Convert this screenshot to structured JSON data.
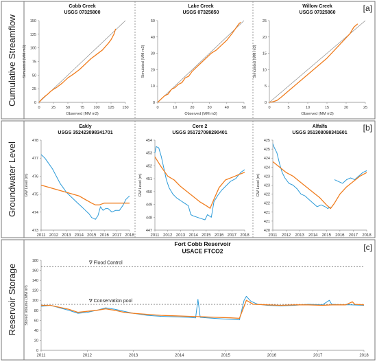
{
  "sections": [
    {
      "tag": "[a]",
      "ylabel": "Cumulative Streamflow"
    },
    {
      "tag": "[b]",
      "ylabel": "Groundwater Level"
    },
    {
      "tag": "[c]",
      "ylabel": "Reservoir Storage"
    }
  ],
  "colors": {
    "simulated": "#f07d1e",
    "observed": "#2b9ad8",
    "one_to_one": "#8c8c8c",
    "frame": "#777777"
  },
  "chart_data": [
    {
      "type": "line",
      "panel": "a1",
      "title": "Cobb Creek",
      "subtitle": "USGS 07325800",
      "xlabel": "Observed (MM m3)",
      "ylabel": "Simulated (MM m3)",
      "xlim": [
        0,
        150
      ],
      "ylim": [
        0,
        150
      ],
      "xticks": [
        0,
        25,
        50,
        75,
        100,
        125,
        150
      ],
      "yticks": [
        0,
        25,
        50,
        75,
        100,
        125,
        150
      ],
      "one_to_one": true,
      "series": [
        {
          "x": [
            0,
            5,
            10,
            15,
            20,
            25,
            30,
            40,
            50,
            60,
            70,
            80,
            90,
            100,
            110,
            115,
            120,
            125,
            130,
            133
          ],
          "y": [
            0,
            6,
            11,
            15,
            20,
            24,
            27,
            35,
            45,
            52,
            60,
            70,
            80,
            88,
            96,
            102,
            108,
            115,
            125,
            135
          ]
        }
      ]
    },
    {
      "type": "line",
      "panel": "a2",
      "title": "Lake Creek",
      "subtitle": "USGS 07325850",
      "xlabel": "Observed (MM m3)",
      "ylabel": "Simulated (MM m3)",
      "xlim": [
        0,
        50
      ],
      "ylim": [
        0,
        50
      ],
      "xticks": [
        0,
        10,
        20,
        30,
        40,
        50
      ],
      "yticks": [
        0,
        10,
        20,
        30,
        40,
        50
      ],
      "one_to_one": true,
      "series": [
        {
          "x": [
            0,
            2,
            4,
            6,
            8,
            10,
            12,
            14,
            16,
            18,
            20,
            22,
            25,
            28,
            31,
            34,
            37,
            40,
            43,
            45,
            47,
            48
          ],
          "y": [
            0,
            2,
            4,
            5,
            8,
            9,
            11,
            12,
            15,
            16,
            19,
            21,
            24,
            27,
            30,
            32,
            35,
            38,
            42,
            45,
            48,
            49
          ]
        }
      ]
    },
    {
      "type": "line",
      "panel": "a3",
      "title": "Willow Creek",
      "subtitle": "USGS 07325860",
      "xlabel": "Observed (MM m3)",
      "ylabel": "Simulated (MM m3)",
      "xlim": [
        0,
        25
      ],
      "ylim": [
        0,
        25
      ],
      "xticks": [
        0,
        5,
        10,
        15,
        20,
        25
      ],
      "yticks": [
        0,
        5,
        10,
        15,
        20,
        25
      ],
      "one_to_one": true,
      "series": [
        {
          "x": [
            0,
            1,
            2,
            3,
            5,
            7,
            9,
            11,
            13,
            15,
            17,
            19,
            21,
            22,
            23
          ],
          "y": [
            0,
            0.2,
            0.6,
            1.5,
            3.5,
            5.5,
            7.5,
            9.5,
            11.5,
            13.5,
            16,
            18.5,
            21,
            23,
            24
          ]
        }
      ]
    },
    {
      "type": "line",
      "panel": "b1",
      "title": "Eakly",
      "subtitle": "USGS 352423098341701",
      "xlabel": "",
      "ylabel": "GW Level (m)",
      "xlim": [
        2011,
        2018
      ],
      "ylim": [
        473,
        478
      ],
      "xticks": [
        2011,
        2012,
        2013,
        2014,
        2015,
        2016,
        2017,
        2018
      ],
      "yticks": [
        473,
        474,
        475,
        476,
        477,
        478
      ],
      "series": [
        {
          "role": "observed",
          "x": [
            2011.0,
            2011.3,
            2011.6,
            2011.9,
            2012.2,
            2012.5,
            2012.8,
            2013.0,
            2013.3,
            2013.6,
            2013.9,
            2014.2,
            2014.5,
            2014.8,
            2015.0,
            2015.3,
            2015.5,
            2015.7,
            2015.9,
            2016.1,
            2016.3,
            2016.6,
            2016.9,
            2017.2,
            2017.5,
            2017.7,
            2018.0
          ],
          "y": [
            477.2,
            477.0,
            476.7,
            476.4,
            476.0,
            475.6,
            475.3,
            475.1,
            474.9,
            474.7,
            474.5,
            474.3,
            474.1,
            473.9,
            473.7,
            473.6,
            473.8,
            474.3,
            474.1,
            474.2,
            474.2,
            474.0,
            474.1,
            474.1,
            474.4,
            474.7,
            474.9
          ]
        },
        {
          "role": "simulated",
          "x": [
            2011.0,
            2011.5,
            2012.0,
            2012.5,
            2013.0,
            2013.5,
            2014.0,
            2014.5,
            2015.0,
            2015.3,
            2015.6,
            2016.0,
            2016.5,
            2017.0,
            2017.5,
            2018.0
          ],
          "y": [
            475.5,
            475.4,
            475.3,
            475.2,
            475.1,
            475.0,
            474.9,
            474.7,
            474.5,
            474.4,
            474.4,
            474.5,
            474.5,
            474.5,
            474.5,
            474.5
          ]
        }
      ]
    },
    {
      "type": "line",
      "panel": "b2",
      "title": "Core 2",
      "subtitle": "USGS 351727098290401",
      "xlabel": "",
      "ylabel": "GW Level (m)",
      "xlim": [
        2011,
        2018
      ],
      "ylim": [
        447,
        454
      ],
      "xticks": [
        2011,
        2012,
        2013,
        2014,
        2015,
        2016,
        2017,
        2018
      ],
      "yticks": [
        447,
        448,
        449,
        450,
        451,
        452,
        453,
        454
      ],
      "series": [
        {
          "role": "observed",
          "x": [
            2011.0,
            2011.1,
            2011.3,
            2011.5,
            2011.7,
            2011.9,
            2012.1,
            2012.4,
            2012.7,
            2013.0,
            2013.3,
            2013.6,
            2013.8,
            2014.0,
            2014.3,
            2014.6,
            2014.9,
            2015.1,
            2015.4,
            2015.6,
            2015.9,
            2016.2,
            2016.5,
            2016.9,
            2017.3,
            2017.7,
            2018.0
          ],
          "y": [
            453.0,
            453.5,
            453.4,
            452.7,
            451.8,
            450.9,
            450.3,
            449.8,
            449.5,
            449.3,
            449.1,
            448.9,
            448.2,
            448.1,
            448.0,
            447.9,
            447.8,
            448.2,
            448.0,
            449.2,
            449.7,
            450.1,
            450.4,
            450.8,
            451.0,
            451.5,
            451.7
          ]
        },
        {
          "role": "simulated",
          "x": [
            2011.0,
            2011.5,
            2012.0,
            2012.5,
            2013.0,
            2013.5,
            2014.0,
            2014.5,
            2015.0,
            2015.3,
            2015.6,
            2016.0,
            2016.5,
            2017.0,
            2017.5,
            2018.0
          ],
          "y": [
            452.7,
            451.9,
            451.2,
            450.9,
            450.4,
            450.0,
            449.6,
            449.2,
            448.9,
            448.7,
            449.4,
            450.3,
            450.9,
            451.1,
            451.3,
            451.5
          ]
        }
      ]
    },
    {
      "type": "line",
      "panel": "b3",
      "title": "Alfalfa",
      "subtitle": "USGS 351308098341601",
      "xlabel": "",
      "ylabel": "GW Level (m)",
      "xlim": [
        2011,
        2018
      ],
      "ylim": [
        420,
        425
      ],
      "xticks": [
        2011,
        2012,
        2013,
        2014,
        2015,
        2016,
        2017,
        2018
      ],
      "yticks": [
        420,
        420.5,
        421,
        421.5,
        422,
        422.5,
        423,
        423.5,
        424,
        424.5,
        425
      ],
      "ytick_labels": [
        "420",
        "421",
        "421",
        "422",
        "422",
        "423",
        "423",
        "424",
        "424",
        "425",
        "425"
      ],
      "series": [
        {
          "role": "observed",
          "segment": 1,
          "x": [
            2011.0,
            2011.1,
            2011.3,
            2011.5,
            2011.7,
            2011.9,
            2012.2,
            2012.5,
            2012.8,
            2013.1,
            2013.4,
            2013.7,
            2014.0,
            2014.3,
            2014.6,
            2014.9,
            2015.1,
            2015.3
          ],
          "y": [
            424.8,
            424.6,
            424.3,
            423.7,
            423.2,
            422.9,
            422.6,
            422.5,
            422.3,
            422.0,
            421.9,
            421.7,
            421.5,
            421.3,
            421.4,
            421.3,
            421.2,
            421.3
          ]
        },
        {
          "role": "observed",
          "segment": 2,
          "x": [
            2015.6,
            2015.9,
            2016.2,
            2016.5,
            2016.8,
            2017.1,
            2017.4,
            2017.7,
            2018.0
          ],
          "y": [
            422.8,
            422.7,
            422.6,
            422.8,
            422.9,
            422.8,
            423.0,
            423.2,
            423.3
          ]
        },
        {
          "role": "simulated",
          "x": [
            2011.0,
            2011.5,
            2012.0,
            2012.5,
            2013.0,
            2013.5,
            2014.0,
            2014.5,
            2015.0,
            2015.3,
            2015.6,
            2016.0,
            2016.5,
            2017.0,
            2017.5,
            2018.0
          ],
          "y": [
            423.8,
            423.5,
            423.2,
            423.0,
            422.7,
            422.4,
            422.1,
            421.8,
            421.4,
            421.2,
            421.5,
            422.0,
            422.4,
            422.7,
            423.0,
            423.2
          ]
        }
      ]
    },
    {
      "type": "line",
      "panel": "c",
      "title": "Fort Cobb Reservoir",
      "subtitle": "USACE FTCO2",
      "xlabel": "",
      "ylabel": "Stored Volume (MM m³)",
      "xlim": [
        2011,
        2018
      ],
      "ylim": [
        0,
        180
      ],
      "xticks": [
        2011,
        2012,
        2013,
        2014,
        2015,
        2016,
        2017,
        2018
      ],
      "yticks": [
        0,
        20,
        40,
        60,
        80,
        100,
        120,
        140,
        160,
        180
      ],
      "reference_lines": [
        {
          "label": "∇ Flood Control",
          "y": 168
        },
        {
          "label": "∇ Conservation pool",
          "y": 92
        }
      ],
      "series": [
        {
          "role": "observed",
          "x": [
            2011.0,
            2011.2,
            2011.4,
            2011.6,
            2011.8,
            2012.0,
            2012.2,
            2012.4,
            2012.6,
            2012.8,
            2013.0,
            2013.3,
            2013.6,
            2013.9,
            2014.2,
            2014.35,
            2014.4,
            2014.45,
            2014.6,
            2014.9,
            2015.1,
            2015.3,
            2015.4,
            2015.45,
            2015.55,
            2015.7,
            2015.9,
            2016.2,
            2016.5,
            2016.8,
            2017.1,
            2017.25,
            2017.3,
            2017.5,
            2017.7,
            2018.0
          ],
          "y": [
            88,
            90,
            85,
            80,
            74,
            76,
            80,
            85,
            82,
            78,
            74,
            70,
            68,
            67,
            66,
            65,
            102,
            66,
            65,
            63,
            62,
            61,
            100,
            108,
            98,
            92,
            90,
            89,
            90,
            92,
            91,
            100,
            92,
            91,
            91,
            90
          ]
        },
        {
          "role": "simulated",
          "x": [
            2011.0,
            2011.2,
            2011.4,
            2011.6,
            2011.8,
            2012.0,
            2012.2,
            2012.4,
            2012.6,
            2012.8,
            2013.0,
            2013.3,
            2013.6,
            2013.9,
            2014.2,
            2014.5,
            2014.8,
            2015.1,
            2015.3,
            2015.4,
            2015.45,
            2015.6,
            2015.9,
            2016.2,
            2016.5,
            2016.8,
            2017.1,
            2017.3,
            2017.6,
            2017.75,
            2017.8,
            2018.0
          ],
          "y": [
            90,
            90,
            86,
            82,
            76,
            78,
            80,
            83,
            80,
            76,
            74,
            72,
            70,
            69,
            68,
            67,
            66,
            65,
            64,
            88,
            100,
            92,
            91,
            90,
            91,
            91,
            90,
            91,
            91,
            97,
            92,
            91
          ]
        }
      ]
    }
  ]
}
